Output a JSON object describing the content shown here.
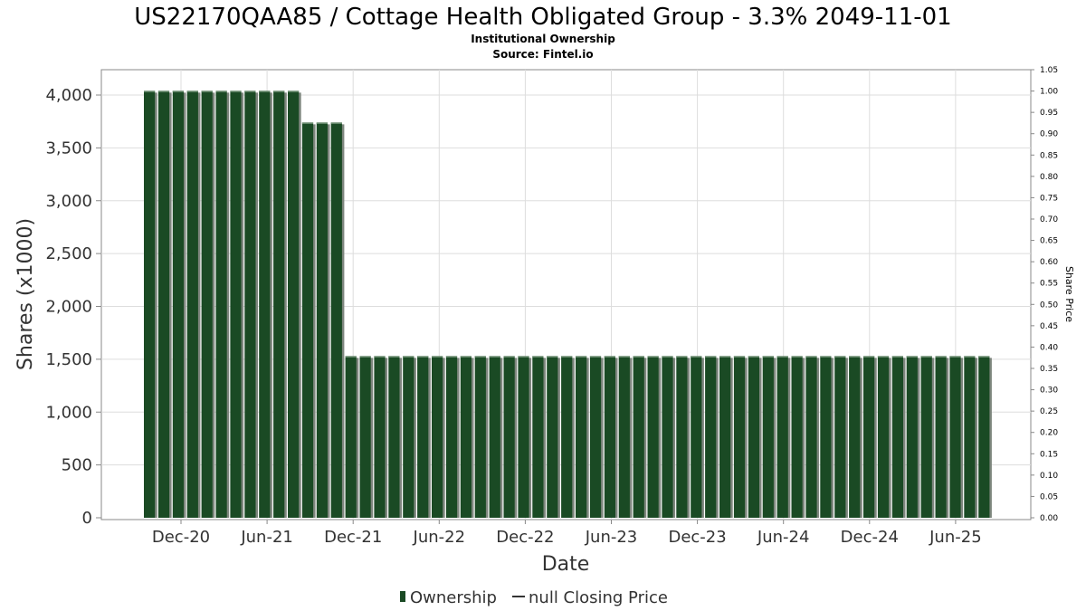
{
  "chart_data": {
    "type": "bar",
    "title": "US22170QAA85 / Cottage Health Obligated Group - 3.3% 2049-11-01",
    "subtitle_lines": [
      "Institutional Ownership",
      "Source: Fintel.io"
    ],
    "xlabel": "Date",
    "ylabel": "Shares (x1000)",
    "y2label": "Share Price",
    "ylim": [
      0,
      4250
    ],
    "y2lim": [
      0,
      1.05
    ],
    "y_ticks": [
      "0",
      "500",
      "1,000",
      "1,500",
      "2,000",
      "2,500",
      "3,000",
      "3,500",
      "4,000"
    ],
    "y2_ticks": [
      "0.00",
      "0.05",
      "0.10",
      "0.15",
      "0.20",
      "0.25",
      "0.30",
      "0.35",
      "0.40",
      "0.45",
      "0.50",
      "0.55",
      "0.60",
      "0.65",
      "0.70",
      "0.75",
      "0.80",
      "0.85",
      "0.90",
      "0.95",
      "1.00",
      "1.05"
    ],
    "x_ticks": [
      "Dec-20",
      "Jun-21",
      "Dec-21",
      "Jun-22",
      "Dec-22",
      "Jun-23",
      "Dec-23",
      "Jun-24",
      "Dec-24",
      "Jun-25"
    ],
    "grid": true,
    "legend_position": "bottom",
    "series": [
      {
        "name": "Ownership",
        "color": "#1a4a24",
        "segments": [
          {
            "value": 4040,
            "count": 11
          },
          {
            "value": 3740,
            "count": 3
          },
          {
            "value": 1530,
            "count": 45
          }
        ]
      },
      {
        "name": "null Closing Price",
        "color": "#333333",
        "values": []
      }
    ]
  }
}
